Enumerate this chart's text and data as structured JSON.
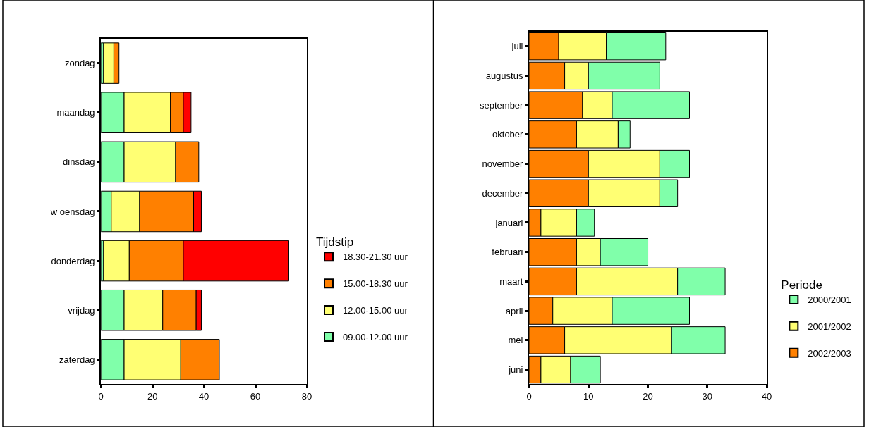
{
  "chart_data": [
    {
      "type": "bar",
      "orientation": "horizontal",
      "stacked": true,
      "legend_title": "Tijdstip",
      "legend": "right",
      "categories": [
        "zondag",
        "maandag",
        "dinsdag",
        "w oensdag",
        "donderdag",
        "vrijdag",
        "zaterdag"
      ],
      "xlim": [
        0,
        80
      ],
      "xticks": [
        0,
        20,
        40,
        60,
        80
      ],
      "series": [
        {
          "name": "09.00-12.00 uur",
          "color": "#80ffaa",
          "values": [
            1,
            9,
            9,
            4,
            1,
            9,
            9
          ]
        },
        {
          "name": "12.00-15.00 uur",
          "color": "#ffff73",
          "values": [
            4,
            18,
            20,
            11,
            10,
            15,
            22
          ]
        },
        {
          "name": "15.00-18.30 uur",
          "color": "#ff8000",
          "values": [
            2,
            5,
            9,
            21,
            21,
            13,
            15
          ]
        },
        {
          "name": "18.30-21.30 uur",
          "color": "#ff0000",
          "values": [
            null,
            3,
            null,
            3,
            41,
            2,
            null
          ]
        }
      ]
    },
    {
      "type": "bar",
      "orientation": "horizontal",
      "stacked": true,
      "legend_title": "Periode",
      "legend": "right",
      "categories": [
        "juli",
        "augustus",
        "september",
        "oktober",
        "november",
        "december",
        "januari",
        "februari",
        "maart",
        "april",
        "mei",
        "juni"
      ],
      "xlim": [
        0,
        40
      ],
      "xticks": [
        0,
        10,
        20,
        30,
        40
      ],
      "series": [
        {
          "name": "2002/2003",
          "color": "#ff8000",
          "values": [
            5,
            6,
            9,
            8,
            10,
            10,
            2,
            8,
            8,
            4,
            6,
            2
          ]
        },
        {
          "name": "2001/2002",
          "color": "#ffff73",
          "values": [
            8,
            4,
            5,
            7,
            12,
            12,
            6,
            4,
            17,
            10,
            18,
            5
          ]
        },
        {
          "name": "2000/2001",
          "color": "#80ffaa",
          "values": [
            10,
            12,
            13,
            2,
            5,
            3,
            3,
            8,
            8,
            13,
            9,
            5
          ]
        }
      ]
    }
  ]
}
